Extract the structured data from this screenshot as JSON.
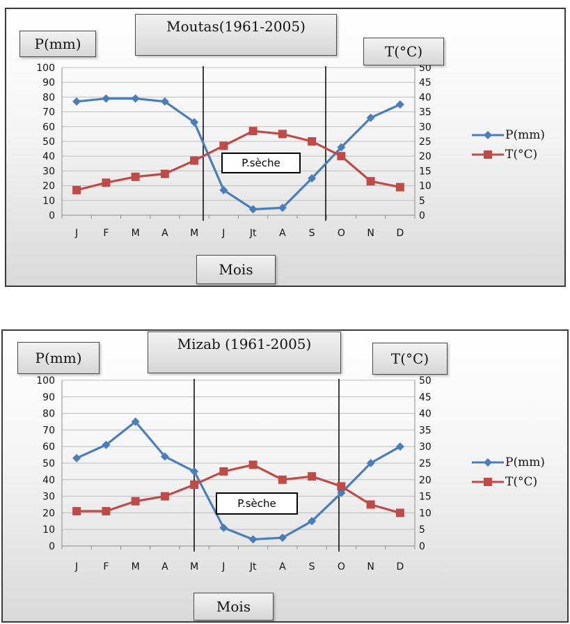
{
  "chart_data": [
    {
      "type": "line",
      "title": "Moutas(1961-2005)",
      "ylabel": "P(mm)",
      "y2label": "T(°C)",
      "xlabel": "Mois",
      "annotation": "P.sèche",
      "categories": [
        "J",
        "F",
        "M",
        "A",
        "M",
        "J",
        "Jt",
        "A",
        "S",
        "O",
        "N",
        "D"
      ],
      "ylim": [
        0,
        100
      ],
      "y2lim": [
        0,
        50
      ],
      "y_ticks": [
        0,
        10,
        20,
        30,
        40,
        50,
        60,
        70,
        80,
        90,
        100
      ],
      "y2_ticks": [
        0,
        5,
        10,
        15,
        20,
        25,
        30,
        35,
        40,
        45,
        50
      ],
      "grid": true,
      "legend_position": "right",
      "dry_period_boundaries": [
        "M-J",
        "S-O"
      ],
      "series": [
        {
          "name": "P(mm)",
          "axis": "left",
          "color": "#4a7ebb",
          "marker": "diamond",
          "values": [
            77,
            79,
            79,
            77,
            63,
            17,
            4,
            5,
            25,
            46,
            66,
            75
          ]
        },
        {
          "name": "T(°C)",
          "axis": "right",
          "color": "#be4b48",
          "marker": "square",
          "values": [
            8.5,
            11,
            13,
            14,
            18.5,
            23.5,
            28.5,
            27.5,
            25,
            20,
            11.5,
            9.5
          ]
        }
      ]
    },
    {
      "type": "line",
      "title": "Mizab (1961-2005)",
      "ylabel": "P(mm)",
      "y2label": "T(°C)",
      "xlabel": "Mois",
      "annotation": "P.sèche",
      "categories": [
        "J",
        "F",
        "M",
        "A",
        "M",
        "J",
        "Jt",
        "A",
        "S",
        "O",
        "N",
        "D"
      ],
      "ylim": [
        0,
        100
      ],
      "y2lim": [
        0,
        50
      ],
      "y_ticks": [
        0,
        10,
        20,
        30,
        40,
        50,
        60,
        70,
        80,
        90,
        100
      ],
      "y2_ticks": [
        0,
        5,
        10,
        15,
        20,
        25,
        30,
        35,
        40,
        45,
        50
      ],
      "grid": true,
      "legend_position": "right",
      "dry_period_boundaries": [
        "M-J",
        "O-N"
      ],
      "series": [
        {
          "name": "P(mm)",
          "axis": "left",
          "color": "#4a7ebb",
          "marker": "diamond",
          "values": [
            53,
            61,
            75,
            54,
            45,
            11,
            4,
            5,
            15,
            32,
            50,
            60
          ]
        },
        {
          "name": "T(°C)",
          "axis": "right",
          "color": "#be4b48",
          "marker": "square",
          "values": [
            10.5,
            10.5,
            13.5,
            15,
            18.5,
            22.5,
            24.5,
            20,
            21,
            18,
            12.5,
            10
          ]
        }
      ]
    }
  ]
}
